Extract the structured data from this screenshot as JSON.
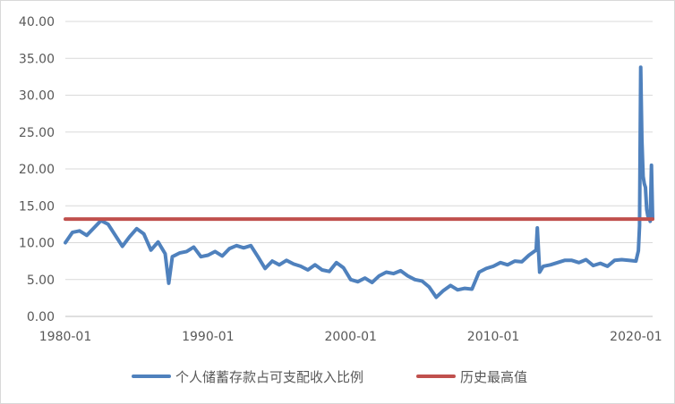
{
  "chart_data": {
    "type": "line",
    "title": "",
    "xlabel": "",
    "ylabel": "",
    "ylim": [
      0,
      40
    ],
    "yticks": [
      "0.00",
      "5.00",
      "10.00",
      "15.00",
      "20.00",
      "25.00",
      "30.00",
      "35.00",
      "40.00"
    ],
    "xticks": [
      "1980-01",
      "1990-01",
      "2000-01",
      "2010-01",
      "2020-01"
    ],
    "x_range": [
      "1980-01",
      "2021-03"
    ],
    "grid": "horizontal",
    "legend_position": "bottom",
    "series": [
      {
        "name": "个人储蓄存款占可支配收入比例",
        "color": "#4f81bd",
        "x": [
          "1980-01",
          "1980-07",
          "1981-01",
          "1981-07",
          "1982-01",
          "1982-07",
          "1983-01",
          "1983-07",
          "1984-01",
          "1984-07",
          "1985-01",
          "1985-07",
          "1986-01",
          "1986-07",
          "1987-01",
          "1987-04",
          "1987-07",
          "1988-01",
          "1988-07",
          "1989-01",
          "1989-07",
          "1990-01",
          "1990-07",
          "1991-01",
          "1991-07",
          "1992-01",
          "1992-07",
          "1993-01",
          "1993-07",
          "1994-01",
          "1994-07",
          "1995-01",
          "1995-07",
          "1996-01",
          "1996-07",
          "1997-01",
          "1997-07",
          "1998-01",
          "1998-07",
          "1999-01",
          "1999-07",
          "2000-01",
          "2000-07",
          "2001-01",
          "2001-07",
          "2002-01",
          "2002-07",
          "2003-01",
          "2003-07",
          "2004-01",
          "2004-07",
          "2005-01",
          "2005-07",
          "2006-01",
          "2006-07",
          "2007-01",
          "2007-07",
          "2008-01",
          "2008-07",
          "2009-01",
          "2009-07",
          "2010-01",
          "2010-07",
          "2011-01",
          "2011-07",
          "2012-01",
          "2012-07",
          "2013-01",
          "2013-02",
          "2013-04",
          "2013-07",
          "2014-01",
          "2014-07",
          "2015-01",
          "2015-07",
          "2016-01",
          "2016-07",
          "2017-01",
          "2017-07",
          "2018-01",
          "2018-07",
          "2019-01",
          "2019-07",
          "2020-01",
          "2020-03",
          "2020-04",
          "2020-05",
          "2020-06",
          "2020-07",
          "2020-08",
          "2020-09",
          "2020-10",
          "2020-11",
          "2020-12",
          "2021-01",
          "2021-02",
          "2021-03"
        ],
        "values": [
          10.0,
          11.4,
          11.6,
          11.0,
          12.0,
          13.0,
          12.5,
          11.0,
          9.5,
          10.8,
          11.9,
          11.2,
          9.0,
          10.1,
          8.5,
          4.5,
          8.1,
          8.6,
          8.8,
          9.4,
          8.1,
          8.3,
          8.8,
          8.2,
          9.2,
          9.6,
          9.3,
          9.6,
          8.1,
          6.5,
          7.5,
          7.0,
          7.6,
          7.1,
          6.8,
          6.3,
          7.0,
          6.3,
          6.1,
          7.3,
          6.6,
          5.0,
          4.7,
          5.2,
          4.6,
          5.5,
          6.0,
          5.8,
          6.2,
          5.5,
          5.0,
          4.8,
          4.0,
          2.6,
          3.5,
          4.2,
          3.6,
          3.8,
          3.7,
          6.0,
          6.5,
          6.8,
          7.3,
          7.0,
          7.5,
          7.4,
          8.3,
          9.0,
          12.0,
          6.0,
          6.8,
          7.0,
          7.3,
          7.6,
          7.6,
          7.3,
          7.7,
          6.9,
          7.2,
          6.8,
          7.6,
          7.7,
          7.6,
          7.5,
          8.9,
          12.3,
          33.8,
          24.0,
          19.0,
          18.0,
          17.5,
          14.5,
          13.6,
          13.5,
          12.9,
          20.5,
          13.3
        ]
      },
      {
        "name": "历史最高值",
        "color": "#c0504d",
        "x": [
          "1980-01",
          "2021-03"
        ],
        "values": [
          13.2,
          13.2
        ]
      }
    ]
  }
}
